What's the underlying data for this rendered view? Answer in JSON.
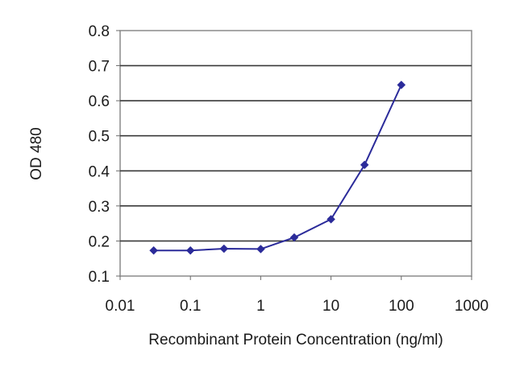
{
  "chart_data": {
    "type": "line",
    "title": "",
    "xlabel": "Recombinant Protein Concentration (ng/ml)",
    "ylabel": "OD 480",
    "x_scale": "log",
    "xlim": [
      0.01,
      1000
    ],
    "ylim": [
      0.1,
      0.8
    ],
    "x_ticks": [
      0.01,
      0.1,
      1,
      10,
      100,
      1000
    ],
    "x_tick_labels": [
      "0.01",
      "0.1",
      "1",
      "10",
      "100",
      "1000"
    ],
    "y_ticks": [
      0.1,
      0.2,
      0.3,
      0.4,
      0.5,
      0.6,
      0.7,
      0.8
    ],
    "y_tick_labels": [
      "0.1",
      "0.2",
      "0.3",
      "0.4",
      "0.5",
      "0.6",
      "0.7",
      "0.8"
    ],
    "grid": "horizontal",
    "legend": "none",
    "series": [
      {
        "x": [
          0.03,
          0.1,
          0.3,
          1,
          3,
          10,
          30,
          100
        ],
        "y": [
          0.173,
          0.173,
          0.178,
          0.177,
          0.21,
          0.262,
          0.417,
          0.645
        ],
        "color": "#2b2b9a",
        "marker": "diamond"
      }
    ]
  }
}
